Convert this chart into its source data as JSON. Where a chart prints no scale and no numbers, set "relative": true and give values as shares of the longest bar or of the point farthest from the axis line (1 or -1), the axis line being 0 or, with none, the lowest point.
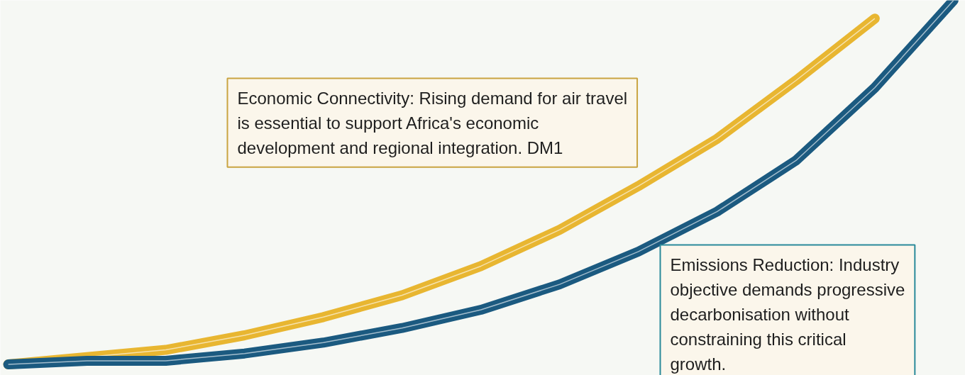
{
  "chart_data": {
    "type": "line",
    "relative": true,
    "categories": [
      null,
      null,
      null,
      null,
      null,
      null,
      null,
      null,
      null,
      null,
      null,
      null,
      null
    ],
    "series": [
      {
        "color": "#e8b631",
        "values": [
          0,
          0.02,
          0.04,
          0.08,
          0.13,
          0.19,
          0.27,
          0.37,
          0.49,
          0.62,
          0.78,
          0.95,
          null
        ]
      },
      {
        "color": "#1b5a80",
        "values": [
          0,
          0.01,
          0.01,
          0.03,
          0.06,
          0.1,
          0.15,
          0.22,
          0.31,
          0.42,
          0.56,
          0.76,
          1.0
        ]
      }
    ],
    "annotations": [
      "Economic Connectivity: Rising demand for air travel is essential to support Africa's economic development and regional integration. DM1",
      "Emissions Reduction: Industry objective demands progressive decarbonisation without constraining this critical growth."
    ]
  }
}
